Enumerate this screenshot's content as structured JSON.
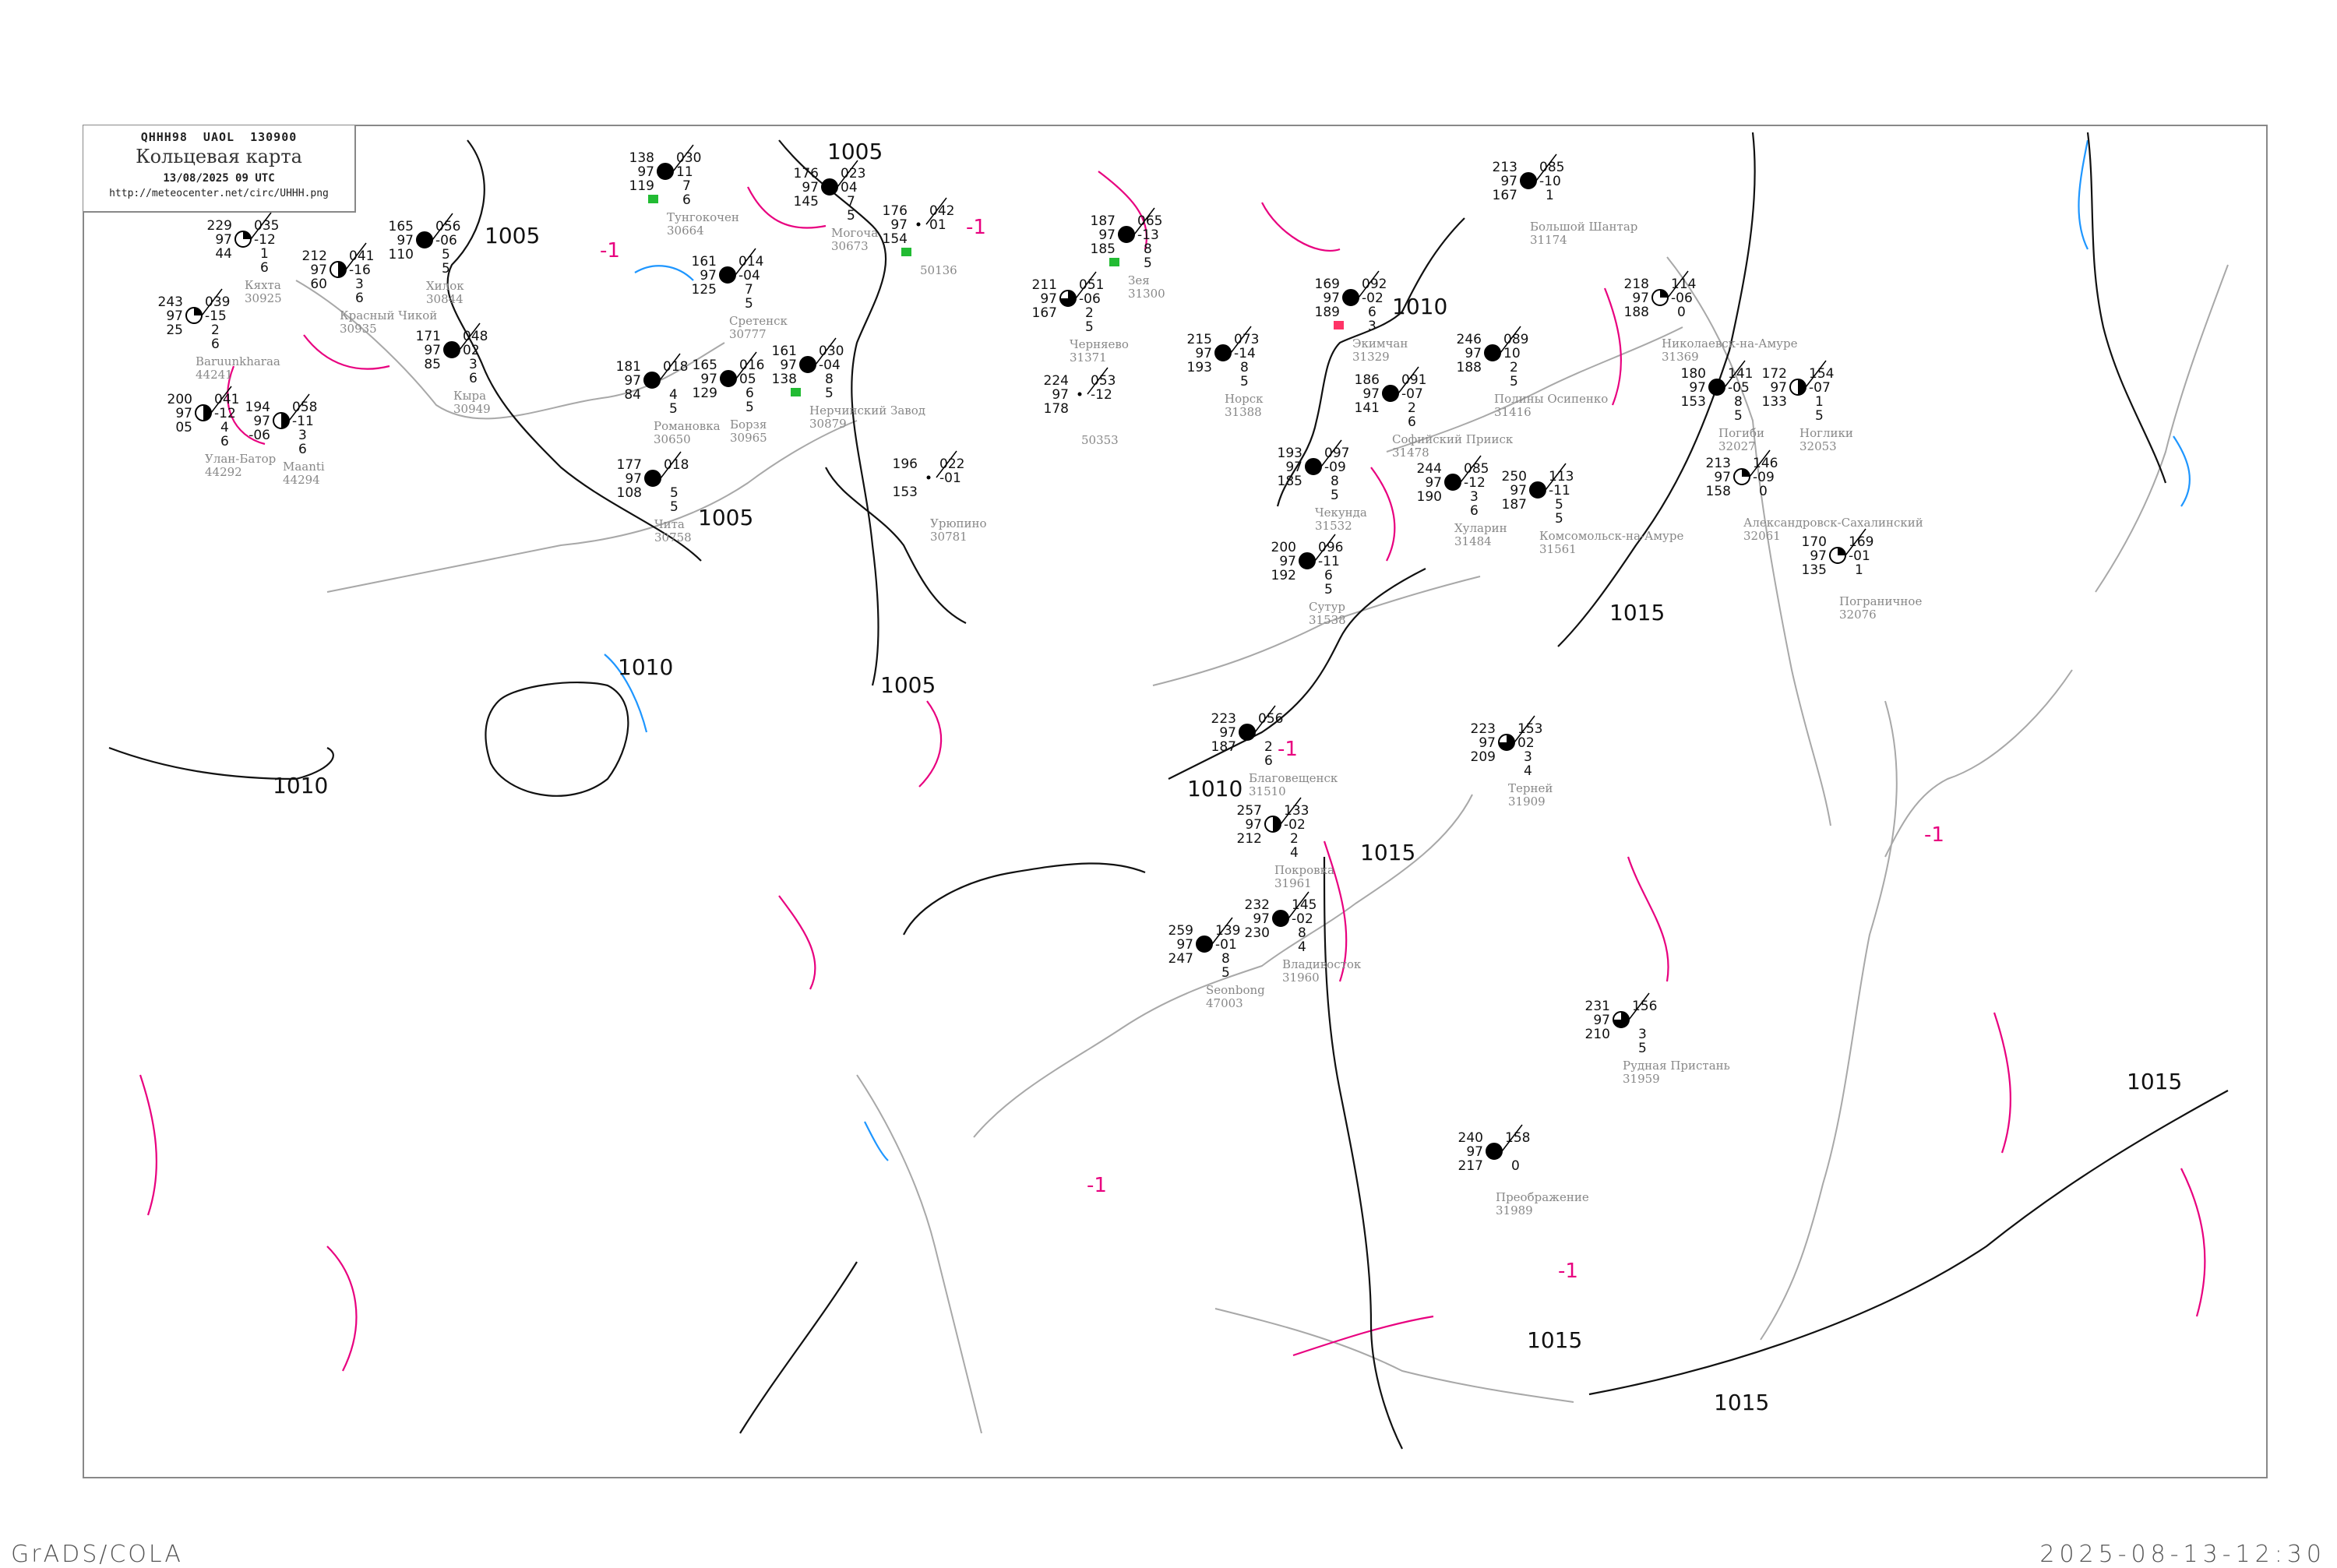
{
  "header": {
    "code_line": "QHHH98   UAOL   130900",
    "title": "Кольцевая карта",
    "datetime": "13/08/2025 09 UTC",
    "url": "http://meteocenter.net/circ/UHHH.png"
  },
  "footer": {
    "software": "GrADS/COLA",
    "generated": "2025-08-13-12:30"
  },
  "colors": {
    "isobar": "#111111",
    "tendency_lines": "#e8007f",
    "cold_lines": "#1e96ff",
    "coastline": "#a8a8a8",
    "frame": "#888888",
    "precip_marker": "#22bb33",
    "alert_marker": "#ff3366"
  },
  "isobar_labels": [
    "1005",
    "1005",
    "1005",
    "1005",
    "1010",
    "1010",
    "1010",
    "1010",
    "1015",
    "1015",
    "1015",
    "1015",
    "1015"
  ],
  "tendency_label": "-1",
  "stations": [
    {
      "id": "30925",
      "name": "Кяхта",
      "left": [
        "229",
        "97",
        "44"
      ],
      "right": [
        "035",
        "-12",
        "1",
        "6"
      ],
      "cover": "partial"
    },
    {
      "id": "30935",
      "name": "Красный Чикой",
      "left": [
        "212",
        "97",
        "60"
      ],
      "right": [
        "041",
        "-16",
        "3",
        "6"
      ],
      "cover": "half"
    },
    {
      "id": "30844",
      "name": "Хилок",
      "left": [
        "165",
        "97",
        "110"
      ],
      "right": [
        "056",
        "-06",
        "5",
        "5"
      ],
      "cover": "overcast"
    },
    {
      "id": "44241",
      "name": "Baruunkharaa",
      "left": [
        "243",
        "97",
        "25"
      ],
      "right": [
        "039",
        "-15",
        "2",
        "6"
      ],
      "cover": "partial"
    },
    {
      "id": "44292",
      "name": "Улан-Батор",
      "left": [
        "200",
        "97",
        "05"
      ],
      "right": [
        "041",
        "-12",
        "4",
        "6"
      ],
      "cover": "half"
    },
    {
      "id": "44294",
      "name": "Maanti",
      "left": [
        "194",
        "97",
        "-06"
      ],
      "right": [
        "058",
        "-11",
        "3",
        "6"
      ],
      "cover": "half"
    },
    {
      "id": "30949",
      "name": "Кыра",
      "left": [
        "171",
        "97",
        "85"
      ],
      "right": [
        "048",
        "02",
        "3",
        "6"
      ],
      "cover": "overcast"
    },
    {
      "id": "30650",
      "name": "Романовка",
      "left": [
        "181",
        "97",
        "84"
      ],
      "right": [
        "018",
        "",
        "4",
        "5"
      ],
      "cover": "overcast"
    },
    {
      "id": "30664",
      "name": "Тунгокочен",
      "left": [
        "138",
        "97",
        "119"
      ],
      "right": [
        "030",
        "11",
        "7",
        "6"
      ],
      "cover": "overcast",
      "precip": true
    },
    {
      "id": "30758",
      "name": "Чита",
      "left": [
        "177",
        "97",
        "108"
      ],
      "right": [
        "018",
        "",
        "5",
        "5"
      ],
      "cover": "overcast"
    },
    {
      "id": "30777",
      "name": "Сретенск",
      "left": [
        "161",
        "97",
        "125"
      ],
      "right": [
        "014",
        "-04",
        "7",
        "5"
      ],
      "cover": "overcast"
    },
    {
      "id": "30673",
      "name": "Могоча",
      "left": [
        "176",
        "97",
        "145"
      ],
      "right": [
        "023",
        "04",
        "7",
        "5"
      ],
      "cover": "overcast"
    },
    {
      "id": "30781",
      "name": "Урюпино",
      "left": [
        "196",
        "",
        "153"
      ],
      "right": [
        "022",
        "-01"
      ],
      "cover": "none"
    },
    {
      "id": "50136",
      "name": "",
      "left": [
        "176",
        "97",
        "154"
      ],
      "right": [
        "042",
        "01"
      ],
      "cover": "none",
      "precip": true
    },
    {
      "id": "30879",
      "name": "Нерчинский Завод",
      "left": [
        "161",
        "97",
        "138"
      ],
      "right": [
        "030",
        "-04",
        "8",
        "5"
      ],
      "cover": "overcast",
      "precip": true
    },
    {
      "id": "30965",
      "name": "Борзя",
      "left": [
        "165",
        "97",
        "129"
      ],
      "right": [
        "016",
        "05",
        "6",
        "5"
      ],
      "cover": "overcast"
    },
    {
      "id": "31300",
      "name": "Зея",
      "left": [
        "187",
        "97",
        "185"
      ],
      "right": [
        "065",
        "-13",
        "8",
        "5"
      ],
      "cover": "overcast",
      "precip": true
    },
    {
      "id": "31371",
      "name": "Черняево",
      "left": [
        "211",
        "97",
        "167"
      ],
      "right": [
        "051",
        "-06",
        "2",
        "5"
      ],
      "cover": "mostly"
    },
    {
      "id": "50353",
      "name": "",
      "left": [
        "224",
        "97",
        "178"
      ],
      "right": [
        "053",
        "-12"
      ],
      "cover": "none"
    },
    {
      "id": "31388",
      "name": "Норск",
      "left": [
        "215",
        "97",
        "193"
      ],
      "right": [
        "073",
        "-14",
        "8",
        "5"
      ],
      "cover": "overcast"
    },
    {
      "id": "31329",
      "name": "Экимчан",
      "left": [
        "169",
        "97",
        "189"
      ],
      "right": [
        "092",
        "-02",
        "6",
        "3"
      ],
      "cover": "overcast",
      "alert": true
    },
    {
      "id": "31478",
      "name": "Софийский Прииск",
      "left": [
        "186",
        "97",
        "141"
      ],
      "right": [
        "091",
        "-07",
        "2",
        "6"
      ],
      "cover": "overcast"
    },
    {
      "id": "31416",
      "name": "Полины Осипенко",
      "left": [
        "246",
        "97",
        "188"
      ],
      "right": [
        "089",
        "10",
        "2",
        "5"
      ],
      "cover": "overcast"
    },
    {
      "id": "31484",
      "name": "Хуларин",
      "left": [
        "244",
        "97",
        "190"
      ],
      "right": [
        "085",
        "-12",
        "3",
        "6"
      ],
      "cover": "overcast"
    },
    {
      "id": "31532",
      "name": "Чекунда",
      "left": [
        "193",
        "97",
        "185"
      ],
      "right": [
        "097",
        "-09",
        "8",
        "5"
      ],
      "cover": "overcast"
    },
    {
      "id": "31538",
      "name": "Сутур",
      "left": [
        "200",
        "97",
        "192"
      ],
      "right": [
        "096",
        "-11",
        "6",
        "5"
      ],
      "cover": "overcast"
    },
    {
      "id": "31561",
      "name": "Комсомольск-на-Амуре",
      "left": [
        "250",
        "97",
        "187"
      ],
      "right": [
        "113",
        "-11",
        "5",
        "5"
      ],
      "cover": "overcast"
    },
    {
      "id": "31510",
      "name": "Благовещенск",
      "left": [
        "223",
        "97",
        "187"
      ],
      "right": [
        "056",
        "",
        "2",
        "6"
      ],
      "cover": "overcast"
    },
    {
      "id": "31174",
      "name": "Большой Шантар",
      "left": [
        "213",
        "97",
        "167"
      ],
      "right": [
        "085",
        "-10",
        "1"
      ],
      "cover": "overcast"
    },
    {
      "id": "31369",
      "name": "Николаевск-на-Амуре",
      "left": [
        "218",
        "97",
        "188"
      ],
      "right": [
        "114",
        "-06",
        "0"
      ],
      "cover": "partial"
    },
    {
      "id": "32027",
      "name": "Погиби",
      "left": [
        "180",
        "97",
        "153"
      ],
      "right": [
        "141",
        "-05",
        "8",
        "5"
      ],
      "cover": "overcast"
    },
    {
      "id": "32053",
      "name": "Ноглики",
      "left": [
        "172",
        "97",
        "133"
      ],
      "right": [
        "154",
        "-07",
        "1",
        "5"
      ],
      "cover": "half"
    },
    {
      "id": "32061",
      "name": "Александровск-Сахалинский",
      "left": [
        "213",
        "97",
        "158"
      ],
      "right": [
        "146",
        "-09",
        "0"
      ],
      "cover": "partial"
    },
    {
      "id": "32076",
      "name": "Пограничное",
      "left": [
        "170",
        "97",
        "135"
      ],
      "right": [
        "169",
        "-01",
        "1"
      ],
      "cover": "partial"
    },
    {
      "id": "31909",
      "name": "Терней",
      "left": [
        "223",
        "97",
        "209"
      ],
      "right": [
        "153",
        "02",
        "3",
        "4"
      ],
      "cover": "mostly"
    },
    {
      "id": "31959",
      "name": "Рудная Пристань",
      "left": [
        "231",
        "97",
        "210"
      ],
      "right": [
        "156",
        "",
        "3",
        "5"
      ],
      "cover": "mostly"
    },
    {
      "id": "31961",
      "name": "Покровка",
      "left": [
        "257",
        "97",
        "212"
      ],
      "right": [
        "133",
        "-02",
        "2",
        "4"
      ],
      "cover": "half"
    },
    {
      "id": "31960",
      "name": "Владивосток",
      "left": [
        "232",
        "97",
        "230"
      ],
      "right": [
        "145",
        "-02",
        "8",
        "4"
      ],
      "cover": "overcast"
    },
    {
      "id": "31989",
      "name": "Преображение",
      "left": [
        "240",
        "97",
        "217"
      ],
      "right": [
        "158",
        "",
        "0"
      ],
      "cover": "overcast"
    },
    {
      "id": "47003",
      "name": "Seonbong",
      "left": [
        "259",
        "97",
        "247"
      ],
      "right": [
        "139",
        "-01",
        "8",
        "5"
      ],
      "cover": "overcast"
    }
  ]
}
